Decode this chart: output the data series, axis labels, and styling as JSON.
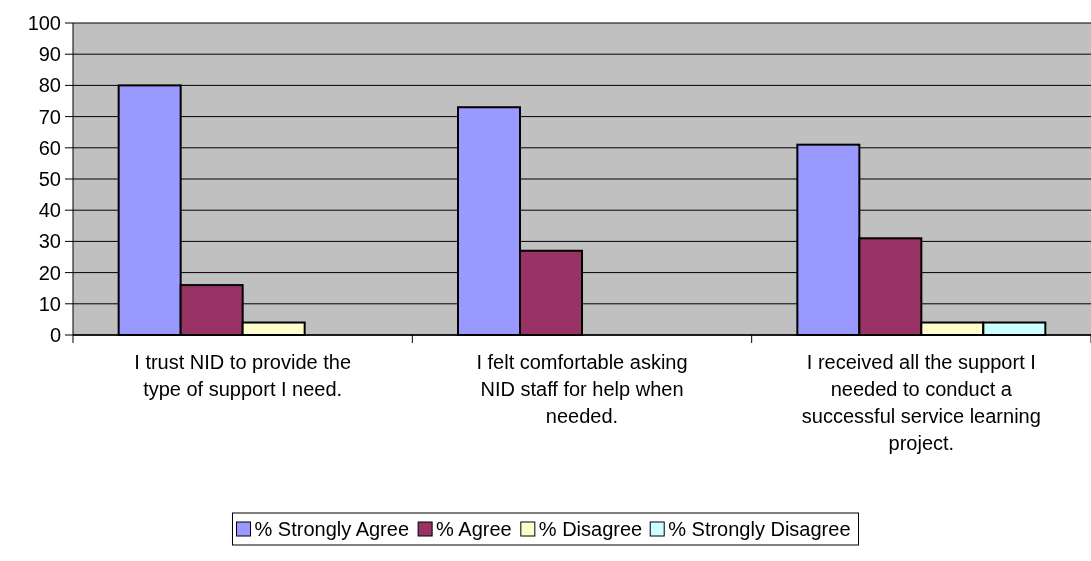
{
  "chart_data": {
    "type": "bar",
    "categories": [
      "I trust NID to provide the type of support I need.",
      "I felt comfortable asking NID staff for help when needed.",
      "I received all the support I needed to conduct a successful service learning project."
    ],
    "series": [
      {
        "name": "% Strongly Agree",
        "color": "#9999ff",
        "values": [
          80,
          73,
          61
        ]
      },
      {
        "name": "% Agree",
        "color": "#993366",
        "values": [
          16,
          27,
          31
        ]
      },
      {
        "name": "% Disagree",
        "color": "#ffffcc",
        "values": [
          4,
          0,
          4
        ]
      },
      {
        "name": "% Strongly Disagree",
        "color": "#ccffff",
        "values": [
          0,
          0,
          4
        ]
      }
    ],
    "ylim": [
      0,
      100
    ],
    "yticks": [
      0,
      10,
      20,
      30,
      40,
      50,
      60,
      70,
      80,
      90,
      100
    ],
    "grid": "y",
    "legend": "bottom"
  }
}
